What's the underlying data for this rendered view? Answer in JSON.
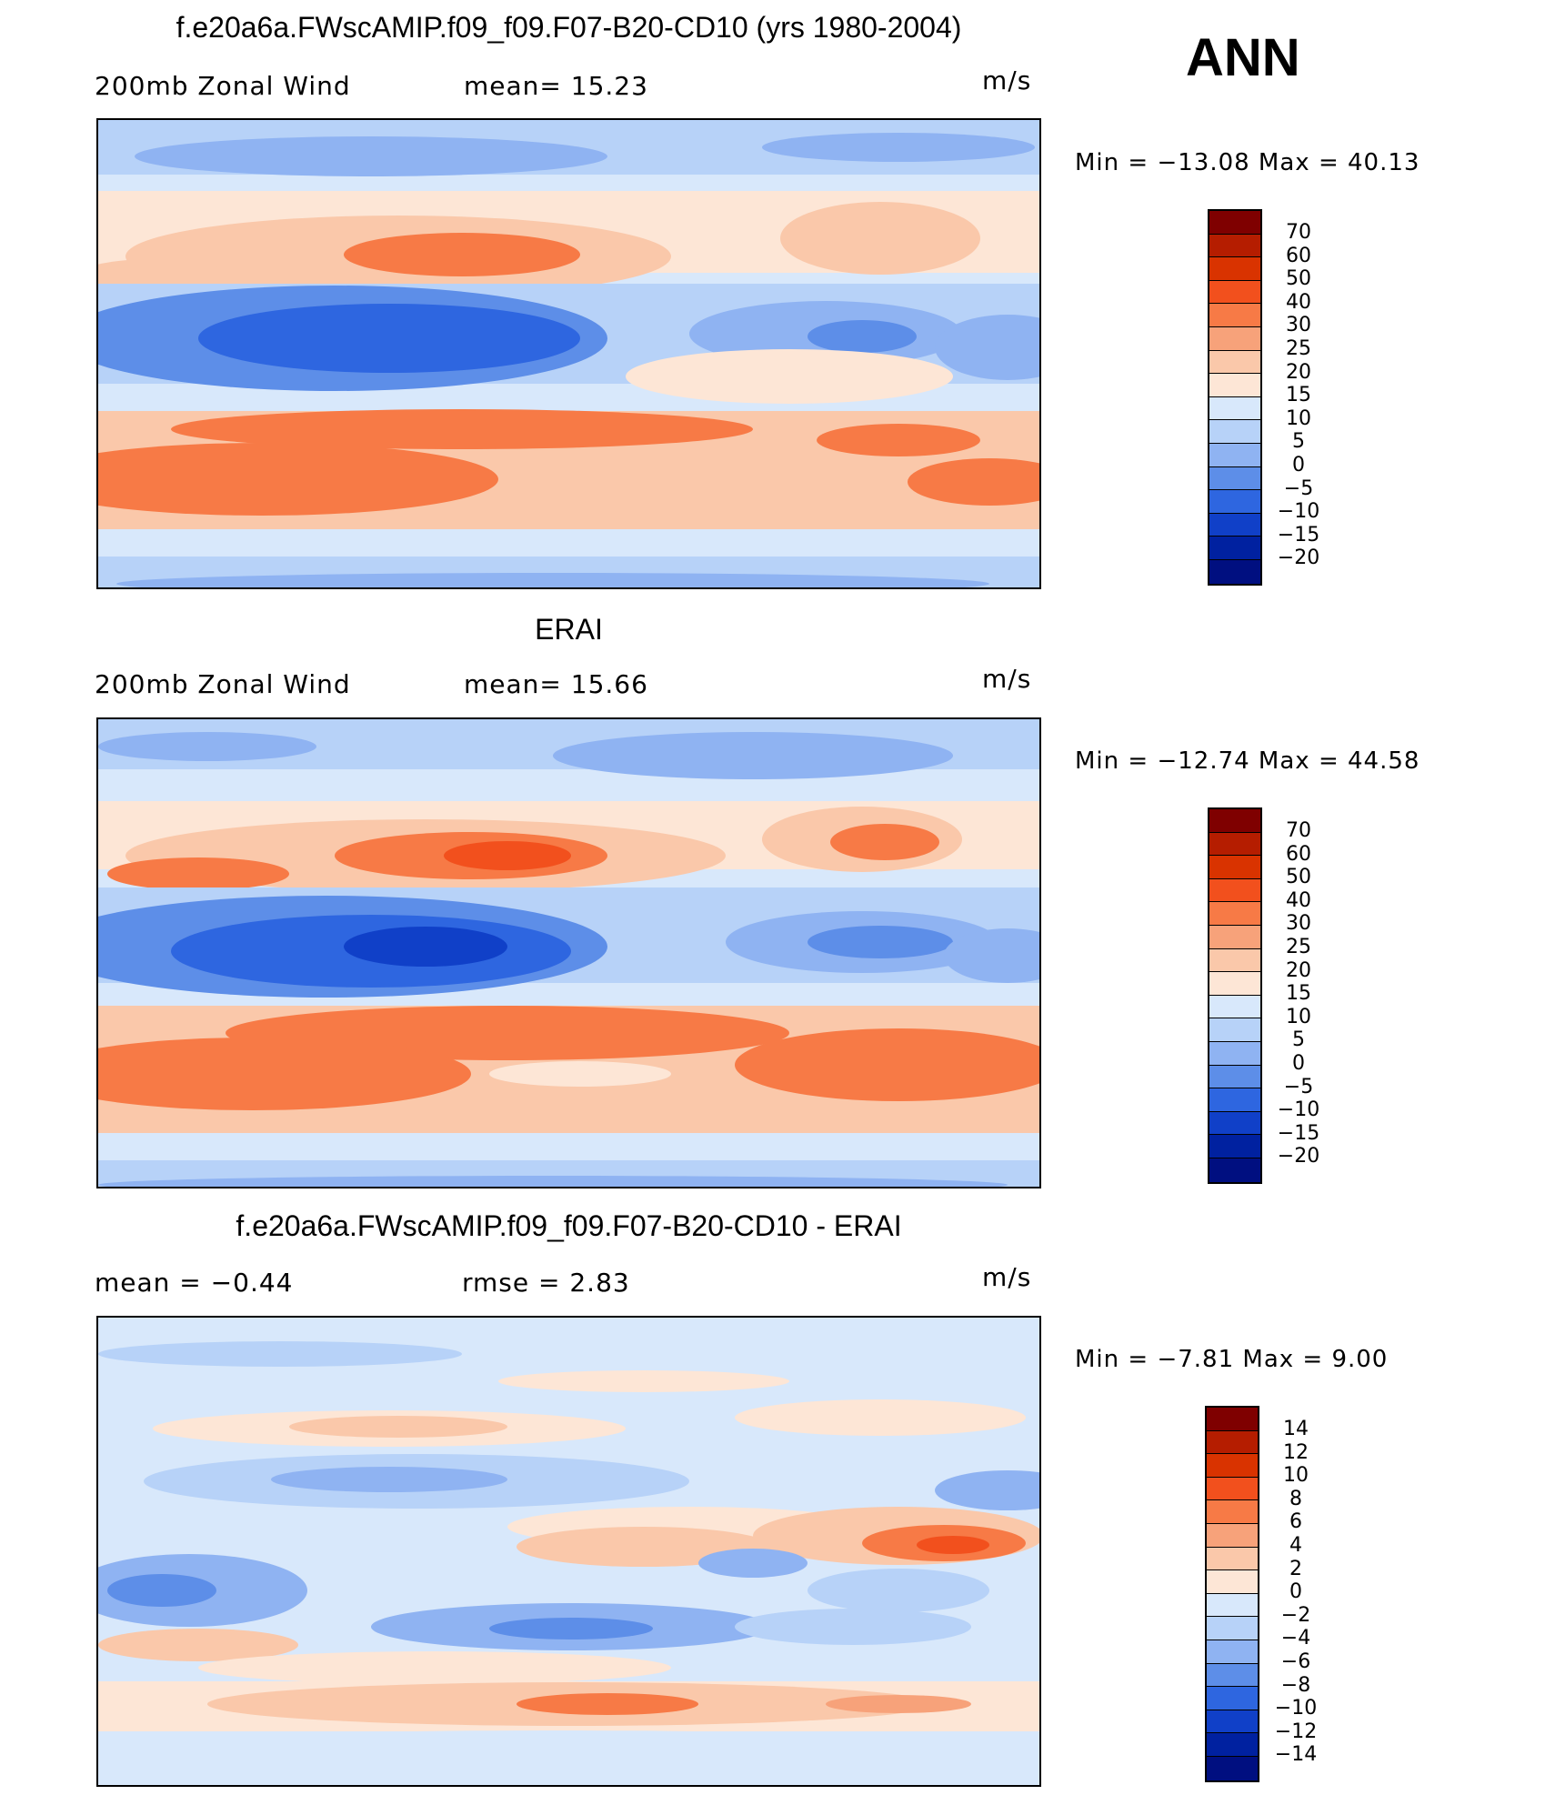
{
  "season": "ANN",
  "panels": [
    {
      "id": "model",
      "title": "f.e20a6a.FWscAMIP.f09_f09.F07-B20-CD10 (yrs 1980-2004)",
      "left_label": "200mb  Zonal  Wind",
      "center_label": "mean=   15.23",
      "units": "m/s",
      "min_max": "Min  =  −13.08  Max  =    40.13",
      "colorbar_levels": [
        "70",
        "60",
        "50",
        "40",
        "30",
        "25",
        "20",
        "15",
        "10",
        "5",
        "0",
        "−5",
        "−10",
        "−15",
        "−20"
      ]
    },
    {
      "id": "obs",
      "title": "ERAI",
      "left_label": "200mb  Zonal  Wind",
      "center_label": "mean=   15.66",
      "units": "m/s",
      "min_max": "Min  =  −12.74  Max  =    44.58",
      "colorbar_levels": [
        "70",
        "60",
        "50",
        "40",
        "30",
        "25",
        "20",
        "15",
        "10",
        "5",
        "0",
        "−5",
        "−10",
        "−15",
        "−20"
      ]
    },
    {
      "id": "diff",
      "title": "f.e20a6a.FWscAMIP.f09_f09.F07-B20-CD10 - ERAI",
      "left_label": "mean  =    −0.44",
      "center_label": "rmse  =     2.83",
      "units": "m/s",
      "min_max": "Min  =    −7.81  Max  =      9.00",
      "colorbar_levels": [
        "14",
        "12",
        "10",
        "8",
        "6",
        "4",
        "2",
        "0",
        "−2",
        "−4",
        "−6",
        "−8",
        "−10",
        "−12",
        "−14"
      ]
    }
  ],
  "colorbar_colors": [
    "#7f0000",
    "#b51d00",
    "#d93300",
    "#f2501d",
    "#f77a46",
    "#f7a27a",
    "#fac8aa",
    "#fde6d6",
    "#d8e8fb",
    "#b7d2f8",
    "#8fb3f2",
    "#5d8ee8",
    "#2e66e0",
    "#1040c8",
    "#0021a0",
    "#000f80"
  ]
}
